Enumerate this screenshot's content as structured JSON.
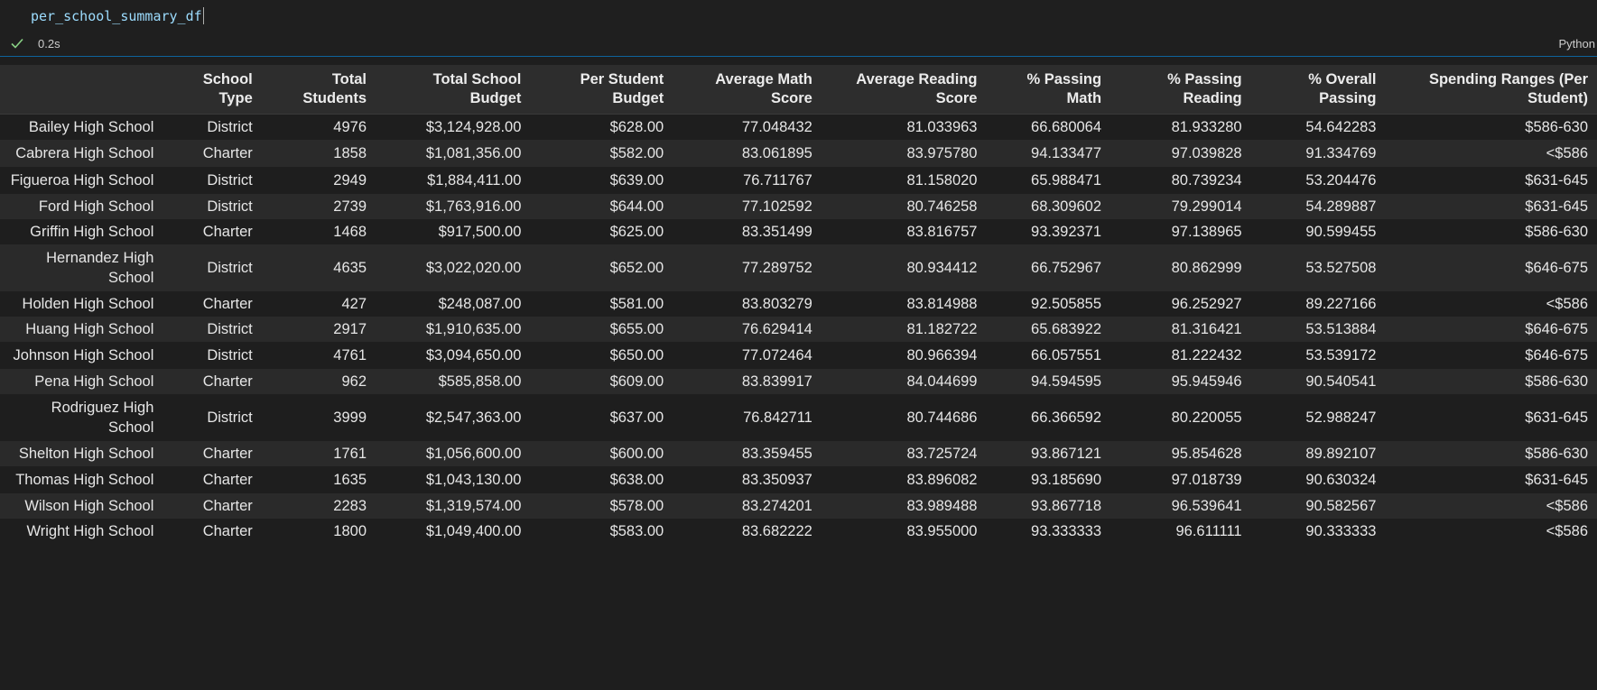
{
  "cell": {
    "code": "per_school_summary_df",
    "exec_time": "0.2s",
    "language": "Python"
  },
  "table": {
    "columns": [
      "School Type",
      "Total Students",
      "Total School Budget",
      "Per Student Budget",
      "Average Math Score",
      "Average Reading Score",
      "% Passing Math",
      "% Passing Reading",
      "% Overall Passing",
      "Spending Ranges (Per Student)"
    ],
    "rows": [
      {
        "school": "Bailey High School",
        "values": [
          "District",
          "4976",
          "$3,124,928.00",
          "$628.00",
          "77.048432",
          "81.033963",
          "66.680064",
          "81.933280",
          "54.642283",
          "$586-630"
        ]
      },
      {
        "school": "Cabrera High School",
        "values": [
          "Charter",
          "1858",
          "$1,081,356.00",
          "$582.00",
          "83.061895",
          "83.975780",
          "94.133477",
          "97.039828",
          "91.334769",
          "<$586"
        ]
      },
      {
        "school": "Figueroa High School",
        "values": [
          "District",
          "2949",
          "$1,884,411.00",
          "$639.00",
          "76.711767",
          "81.158020",
          "65.988471",
          "80.739234",
          "53.204476",
          "$631-645"
        ]
      },
      {
        "school": "Ford High School",
        "values": [
          "District",
          "2739",
          "$1,763,916.00",
          "$644.00",
          "77.102592",
          "80.746258",
          "68.309602",
          "79.299014",
          "54.289887",
          "$631-645"
        ]
      },
      {
        "school": "Griffin High School",
        "values": [
          "Charter",
          "1468",
          "$917,500.00",
          "$625.00",
          "83.351499",
          "83.816757",
          "93.392371",
          "97.138965",
          "90.599455",
          "$586-630"
        ]
      },
      {
        "school": "Hernandez High School",
        "values": [
          "District",
          "4635",
          "$3,022,020.00",
          "$652.00",
          "77.289752",
          "80.934412",
          "66.752967",
          "80.862999",
          "53.527508",
          "$646-675"
        ]
      },
      {
        "school": "Holden High School",
        "values": [
          "Charter",
          "427",
          "$248,087.00",
          "$581.00",
          "83.803279",
          "83.814988",
          "92.505855",
          "96.252927",
          "89.227166",
          "<$586"
        ]
      },
      {
        "school": "Huang High School",
        "values": [
          "District",
          "2917",
          "$1,910,635.00",
          "$655.00",
          "76.629414",
          "81.182722",
          "65.683922",
          "81.316421",
          "53.513884",
          "$646-675"
        ]
      },
      {
        "school": "Johnson High School",
        "values": [
          "District",
          "4761",
          "$3,094,650.00",
          "$650.00",
          "77.072464",
          "80.966394",
          "66.057551",
          "81.222432",
          "53.539172",
          "$646-675"
        ]
      },
      {
        "school": "Pena High School",
        "values": [
          "Charter",
          "962",
          "$585,858.00",
          "$609.00",
          "83.839917",
          "84.044699",
          "94.594595",
          "95.945946",
          "90.540541",
          "$586-630"
        ]
      },
      {
        "school": "Rodriguez High School",
        "values": [
          "District",
          "3999",
          "$2,547,363.00",
          "$637.00",
          "76.842711",
          "80.744686",
          "66.366592",
          "80.220055",
          "52.988247",
          "$631-645"
        ]
      },
      {
        "school": "Shelton High School",
        "values": [
          "Charter",
          "1761",
          "$1,056,600.00",
          "$600.00",
          "83.359455",
          "83.725724",
          "93.867121",
          "95.854628",
          "89.892107",
          "$586-630"
        ]
      },
      {
        "school": "Thomas High School",
        "values": [
          "Charter",
          "1635",
          "$1,043,130.00",
          "$638.00",
          "83.350937",
          "83.896082",
          "93.185690",
          "97.018739",
          "90.630324",
          "$631-645"
        ]
      },
      {
        "school": "Wilson High School",
        "values": [
          "Charter",
          "2283",
          "$1,319,574.00",
          "$578.00",
          "83.274201",
          "83.989488",
          "93.867718",
          "96.539641",
          "90.582567",
          "<$586"
        ]
      },
      {
        "school": "Wright High School",
        "values": [
          "Charter",
          "1800",
          "$1,049,400.00",
          "$583.00",
          "83.682222",
          "83.955000",
          "93.333333",
          "96.611111",
          "90.333333",
          "<$586"
        ]
      }
    ]
  },
  "colors": {
    "background": "#1e1e1e",
    "header_bg": "#2d2d2d",
    "alt_row_bg": "#2a2a2a",
    "code_color": "#9cdcfe",
    "success_check": "#89d185",
    "focus_border": "#0e639c"
  },
  "icons": {
    "status": "check-icon"
  }
}
